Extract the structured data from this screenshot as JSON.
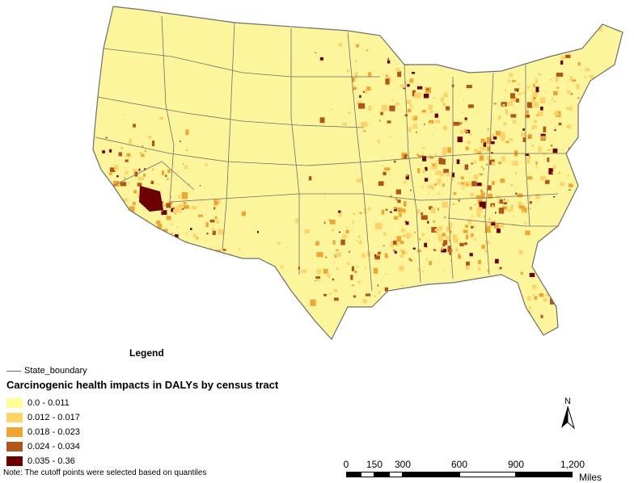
{
  "legend": {
    "title": "Legend",
    "boundary_label": "State_boundary",
    "subtitle": "Carcinogenic health impacts in DALYs by census tract",
    "classes": [
      {
        "label": "0.0 - 0.011",
        "color": "#ffff99"
      },
      {
        "label": "0.012 - 0.017",
        "color": "#fed36a"
      },
      {
        "label": "0.018 - 0.023",
        "color": "#f0a432"
      },
      {
        "label": "0.024 - 0.034",
        "color": "#b0561a"
      },
      {
        "label": "0.035 - 0.36",
        "color": "#6b0000"
      }
    ]
  },
  "note": "Note: The cutoff points were selected based on quantiles",
  "north_arrow": {
    "label": "N",
    "icon": "north-arrow-icon"
  },
  "scale_bar": {
    "ticks": [
      "0",
      "150",
      "300",
      "600",
      "900",
      "1,200"
    ],
    "units": "Miles"
  },
  "map_colors": {
    "background_fill": "#fdf59c",
    "boundary_stroke": "#6e6e6e"
  }
}
